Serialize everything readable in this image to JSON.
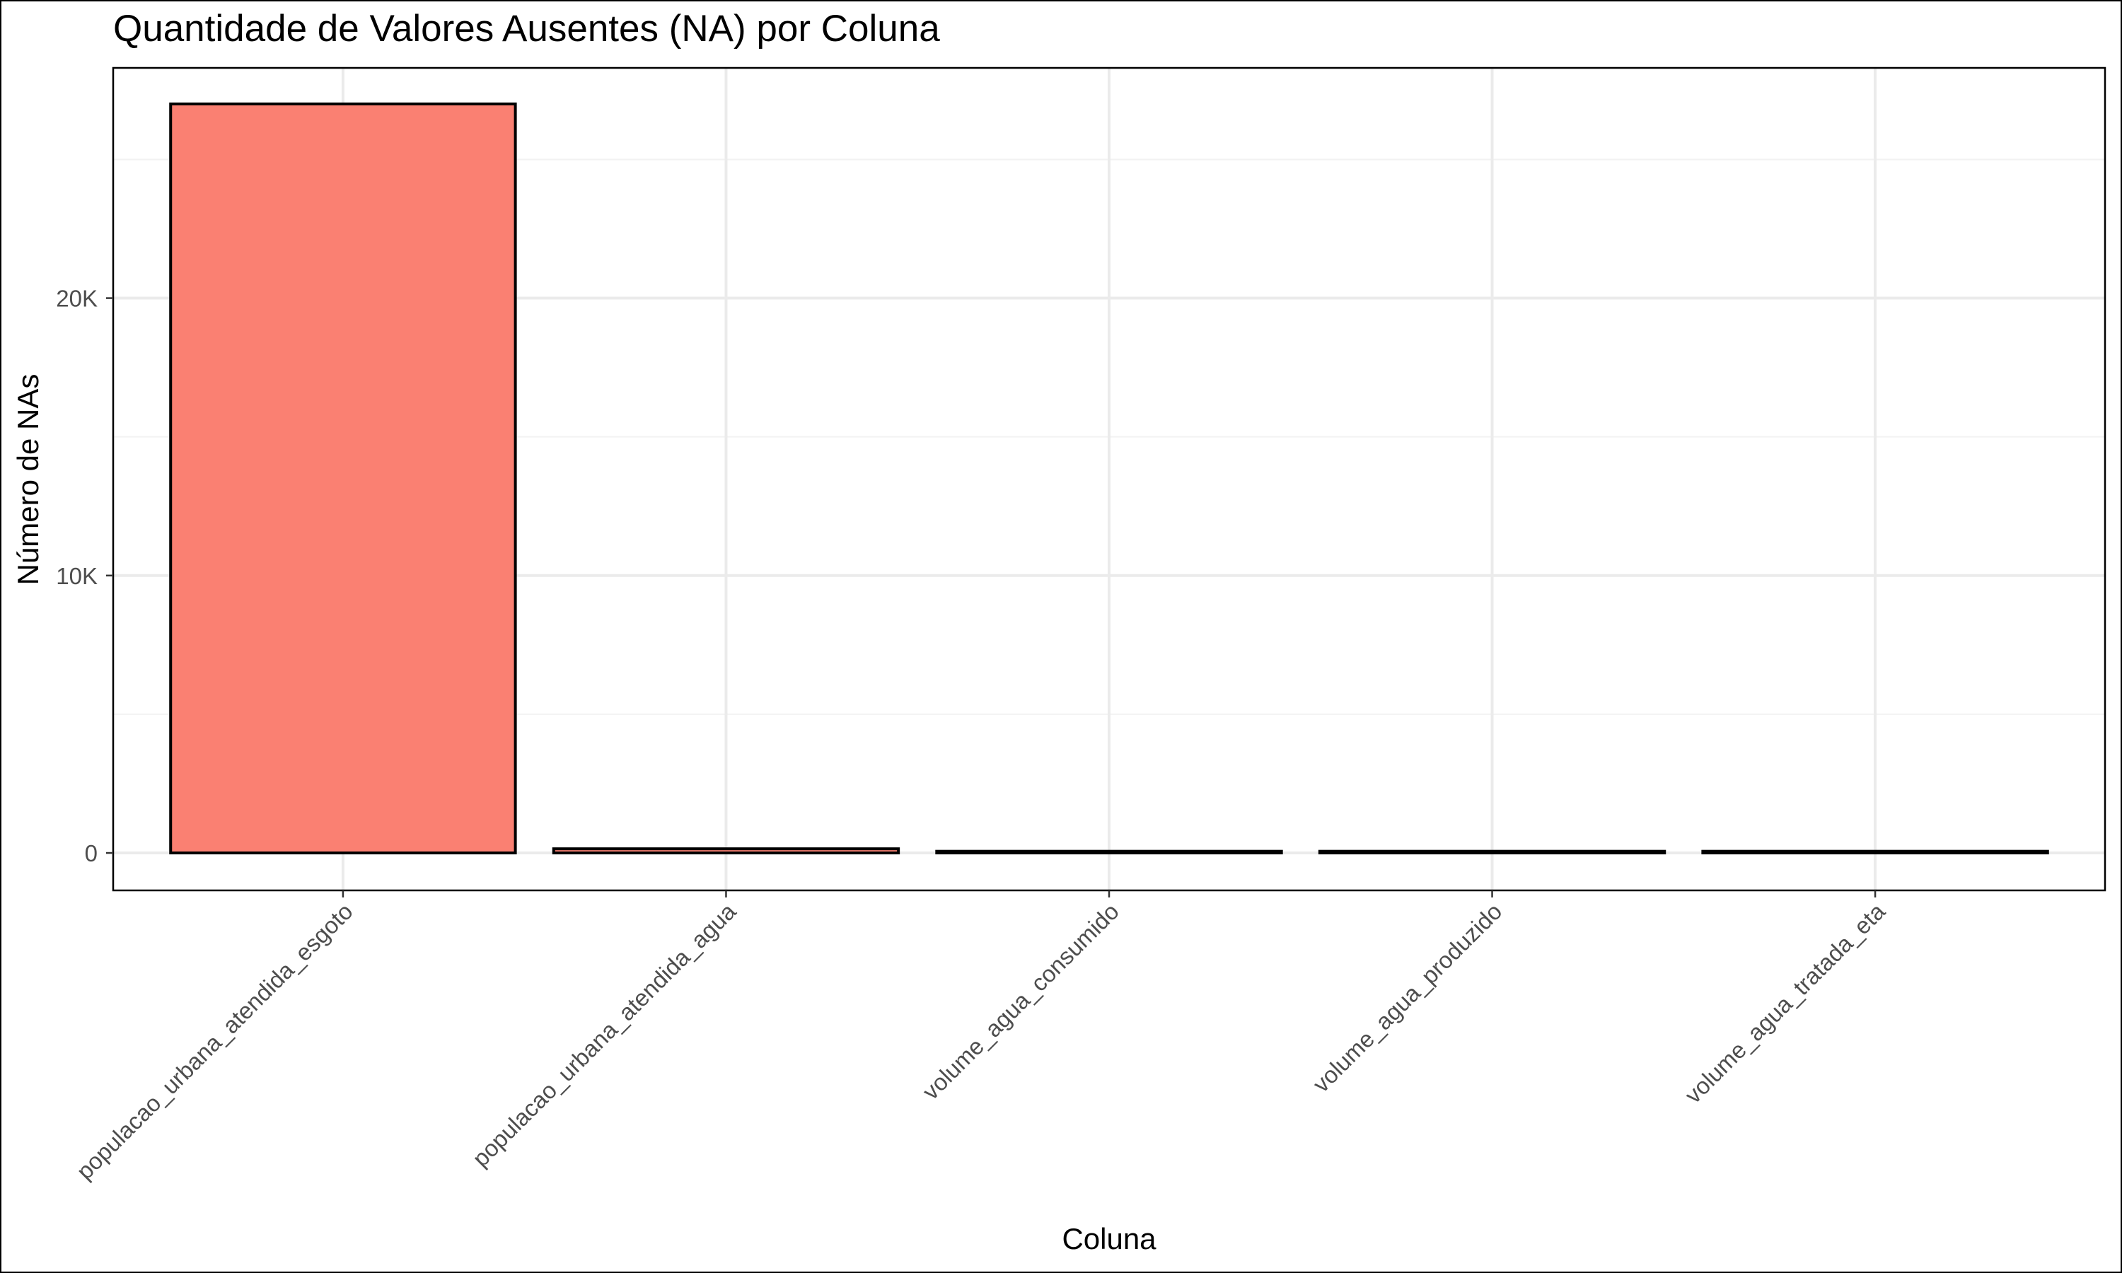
{
  "chart_data": {
    "type": "bar",
    "title": "Quantidade de Valores Ausentes (NA) por Coluna",
    "xlabel": "Coluna",
    "ylabel": "Número de NAs",
    "categories": [
      "populacao_urbana_atendida_esgoto",
      "populacao_urbana_atendida_agua",
      "volume_agua_consumido",
      "volume_agua_produzido",
      "volume_agua_tratada_eta"
    ],
    "values": [
      27000,
      150,
      60,
      60,
      60
    ],
    "ylim": [
      -1350,
      28300
    ],
    "y_ticks": [
      0,
      10000,
      20000
    ],
    "y_tick_labels": [
      "0",
      "10K",
      "20K"
    ],
    "grid": true,
    "legend": "none",
    "colors": {
      "bar_fill": "#FA8072",
      "bar_outline": "#000000",
      "grid_major": "#EBEBEB",
      "grid_minor": "#F2F2F2",
      "panel_border": "#000000",
      "tick_text": "#4D4D4D"
    }
  }
}
